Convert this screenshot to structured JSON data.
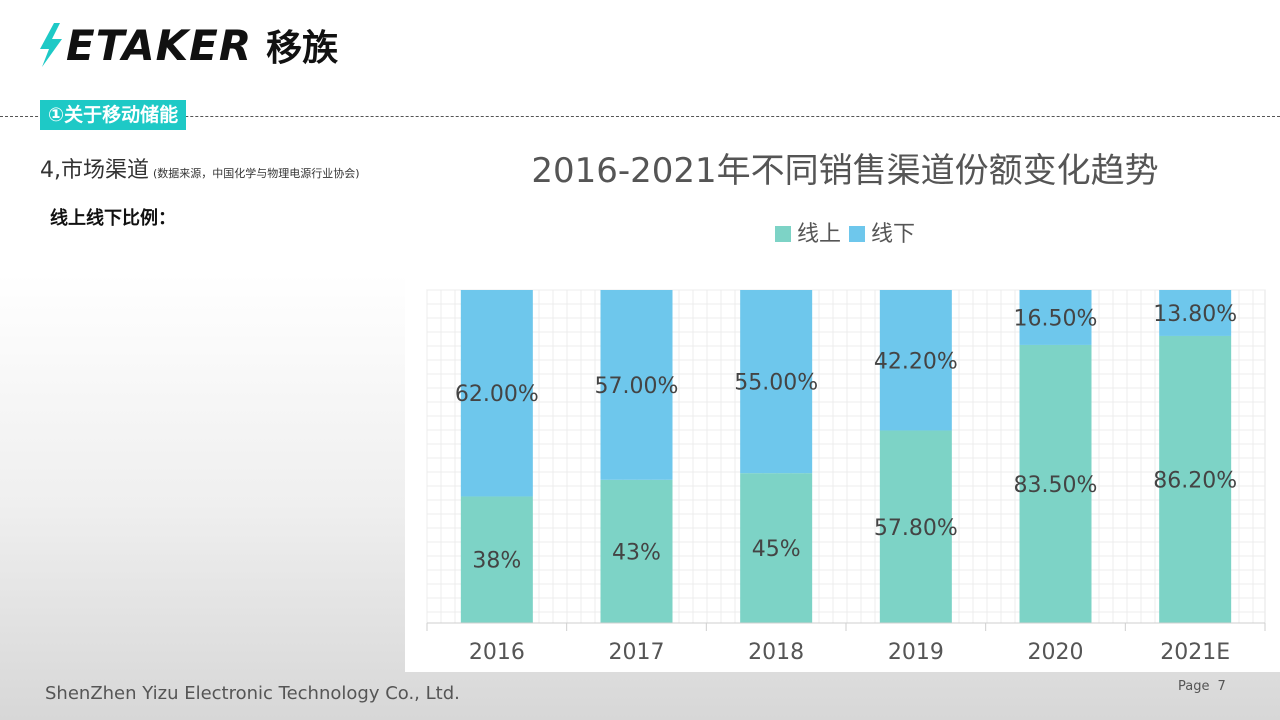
{
  "header": {
    "logo_text": "ETAKER",
    "logo_cn": "移族",
    "brand_color": "#1ec9c6"
  },
  "section_tag": "①关于移动储能",
  "heading": {
    "title": "4,市场渠道",
    "source": "(数据来源，中国化学与物理电源行业协会)"
  },
  "subheading": "线上线下比例：",
  "chart_data": {
    "type": "bar",
    "stacked": true,
    "title": "2016-2021年不同销售渠道份额变化趋势",
    "categories": [
      "2016",
      "2017",
      "2018",
      "2019",
      "2020",
      "2021E"
    ],
    "series": [
      {
        "name": "线上",
        "color": "#7dd3c6",
        "values": [
          38,
          43,
          45,
          57.8,
          83.5,
          86.2
        ],
        "labels": [
          "38%",
          "43%",
          "45%",
          "57.80%",
          "83.50%",
          "86.20%"
        ]
      },
      {
        "name": "线下",
        "color": "#6ec7ec",
        "values": [
          62,
          57,
          55,
          42.2,
          16.5,
          13.8
        ],
        "labels": [
          "62.00%",
          "57.00%",
          "55.00%",
          "42.20%",
          "16.50%",
          "13.80%"
        ]
      }
    ],
    "ylim": [
      0,
      100
    ],
    "grid": true,
    "legend_position": "top-center"
  },
  "footer": {
    "company": "ShenZhen Yizu Electronic Technology Co., Ltd.",
    "page_label": "Page",
    "page_number": "7"
  }
}
